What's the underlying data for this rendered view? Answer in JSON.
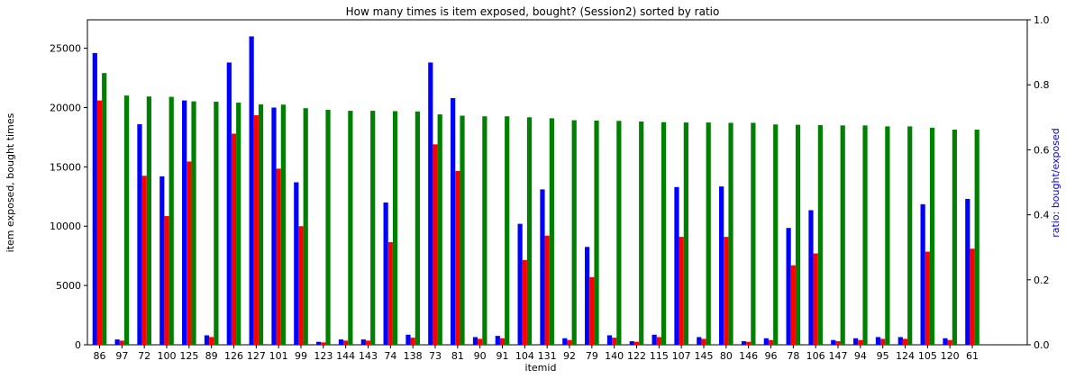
{
  "chart_data": {
    "type": "bar",
    "title": "How many times is item exposed, bought? (Session2) sorted by ratio",
    "xlabel": "itemid",
    "ylabel": "item exposed, bought times",
    "y2label": "ratio: bought/exposed",
    "ylim": [
      0,
      27400
    ],
    "y2lim": [
      0,
      1.0
    ],
    "yticks": [
      0,
      5000,
      10000,
      15000,
      20000,
      25000
    ],
    "y2ticks": [
      0.0,
      0.2,
      0.4,
      0.6,
      0.8,
      1.0
    ],
    "grid": false,
    "legend": "none",
    "categories": [
      "86",
      "97",
      "72",
      "100",
      "125",
      "89",
      "126",
      "127",
      "101",
      "99",
      "123",
      "144",
      "143",
      "74",
      "138",
      "73",
      "81",
      "90",
      "91",
      "104",
      "131",
      "92",
      "79",
      "140",
      "122",
      "115",
      "107",
      "145",
      "80",
      "146",
      "96",
      "78",
      "106",
      "147",
      "94",
      "95",
      "124",
      "105",
      "120",
      "61"
    ],
    "series": [
      {
        "axis": "left",
        "color": "#0000ff",
        "values": [
          24600,
          450,
          18600,
          14200,
          20600,
          800,
          23800,
          26000,
          20000,
          13700,
          250,
          450,
          450,
          12000,
          850,
          23800,
          20800,
          650,
          750,
          10200,
          13100,
          550,
          8250,
          800,
          300,
          850,
          13300,
          650,
          13350,
          300,
          550,
          9850,
          11350,
          400,
          550,
          650,
          650,
          11850,
          550,
          12300
        ]
      },
      {
        "axis": "left",
        "color": "#ff0000",
        "values": [
          20600,
          350,
          14250,
          10850,
          15450,
          650,
          17800,
          19350,
          14850,
          10000,
          200,
          350,
          350,
          8650,
          600,
          16900,
          14650,
          500,
          550,
          7150,
          9200,
          400,
          5700,
          600,
          250,
          650,
          9100,
          500,
          9100,
          250,
          400,
          6700,
          7700,
          300,
          400,
          500,
          500,
          7850,
          400,
          8100
        ]
      },
      {
        "axis": "right",
        "color": "#008000",
        "values": [
          0.836,
          0.767,
          0.764,
          0.763,
          0.749,
          0.748,
          0.745,
          0.74,
          0.739,
          0.728,
          0.723,
          0.72,
          0.72,
          0.719,
          0.718,
          0.709,
          0.705,
          0.703,
          0.703,
          0.7,
          0.697,
          0.691,
          0.69,
          0.689,
          0.687,
          0.685,
          0.684,
          0.684,
          0.683,
          0.683,
          0.678,
          0.677,
          0.676,
          0.675,
          0.675,
          0.672,
          0.672,
          0.668,
          0.662,
          0.662
        ]
      }
    ]
  }
}
